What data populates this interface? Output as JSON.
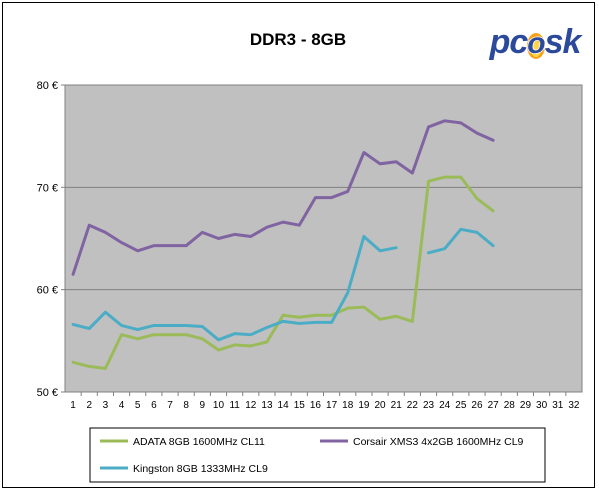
{
  "chart_data": {
    "type": "line",
    "title": "DDR3 - 8GB",
    "logo_text": "pcɵsk",
    "xlabel": "",
    "ylabel": "",
    "categories": [
      "1",
      "2",
      "3",
      "4",
      "5",
      "6",
      "7",
      "8",
      "9",
      "10",
      "11",
      "12",
      "13",
      "14",
      "15",
      "16",
      "17",
      "18",
      "19",
      "20",
      "21",
      "22",
      "23",
      "24",
      "25",
      "26",
      "27",
      "28",
      "29",
      "30",
      "31",
      "32"
    ],
    "ylim": [
      50,
      80
    ],
    "y_ticks": [
      "50 €",
      "60 €",
      "70 €",
      "80 €"
    ],
    "y_tick_values": [
      50,
      60,
      70,
      80
    ],
    "grid": true,
    "legend_position": "bottom",
    "plot_background": "#c0c0c0",
    "series": [
      {
        "name": "ADATA 8GB 1600MHz CL11",
        "color": "#9bbb59",
        "values": [
          52.9,
          52.5,
          52.3,
          55.6,
          55.2,
          55.6,
          55.6,
          55.6,
          55.2,
          54.1,
          54.6,
          54.5,
          54.9,
          57.5,
          57.3,
          57.5,
          57.5,
          58.2,
          58.3,
          57.1,
          57.4,
          56.9,
          70.6,
          71.0,
          71.0,
          68.9,
          67.7,
          null,
          null,
          null,
          null,
          null
        ]
      },
      {
        "name": "Corsair XMS3 4x2GB 1600MHz CL9",
        "color": "#8064a2",
        "values": [
          61.5,
          66.3,
          65.6,
          64.6,
          63.8,
          64.3,
          64.3,
          64.3,
          65.6,
          65.0,
          65.4,
          65.2,
          66.1,
          66.6,
          66.3,
          69.0,
          69.0,
          69.6,
          73.4,
          72.3,
          72.5,
          71.4,
          75.9,
          76.5,
          76.3,
          75.3,
          74.6,
          null,
          null,
          null,
          null,
          null
        ]
      },
      {
        "name": "Kingston 8GB 1333MHz CL9",
        "color": "#4bacc6",
        "values": [
          56.6,
          56.2,
          57.8,
          56.5,
          56.1,
          56.5,
          56.5,
          56.5,
          56.4,
          55.1,
          55.7,
          55.6,
          56.3,
          56.9,
          56.7,
          56.8,
          56.8,
          59.7,
          65.2,
          63.8,
          64.1,
          null,
          63.6,
          64.0,
          65.9,
          65.6,
          64.3,
          null,
          null,
          null,
          null,
          null
        ]
      }
    ]
  }
}
